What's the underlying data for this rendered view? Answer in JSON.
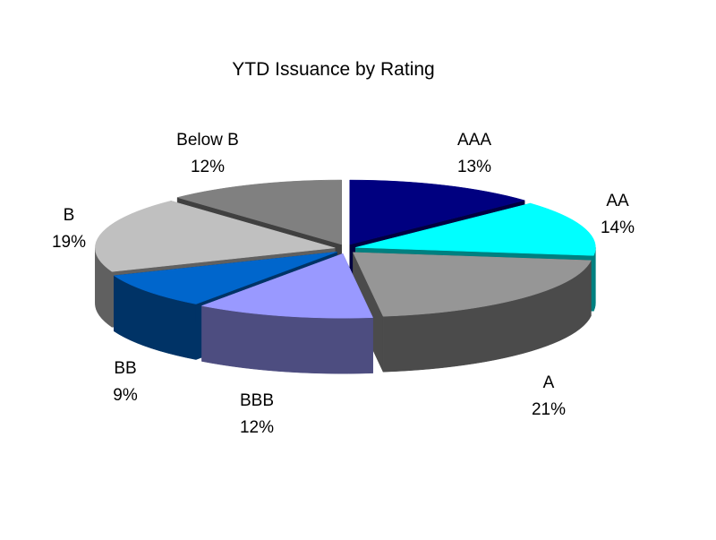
{
  "chart_data": {
    "type": "pie",
    "title": "YTD Issuance by Rating",
    "three_d": true,
    "exploded": true,
    "slices": [
      {
        "label": "AAA",
        "value": 13,
        "pct_label": "13%",
        "color": "#000080",
        "side_color": "#000040"
      },
      {
        "label": "AA",
        "value": 14,
        "pct_label": "14%",
        "color": "#00FFFF",
        "side_color": "#008080"
      },
      {
        "label": "A",
        "value": 21,
        "pct_label": "21%",
        "color": "#969696",
        "side_color": "#4B4B4B"
      },
      {
        "label": "BBB",
        "value": 12,
        "pct_label": "12%",
        "color": "#9999FF",
        "side_color": "#4D4D80"
      },
      {
        "label": "BB",
        "value": 9,
        "pct_label": "9%",
        "color": "#0066CC",
        "side_color": "#003366"
      },
      {
        "label": "B",
        "value": 19,
        "pct_label": "19%",
        "color": "#C0C0C0",
        "side_color": "#606060"
      },
      {
        "label": "Below B",
        "value": 12,
        "pct_label": "12%",
        "color": "#808080",
        "side_color": "#404040"
      }
    ]
  }
}
